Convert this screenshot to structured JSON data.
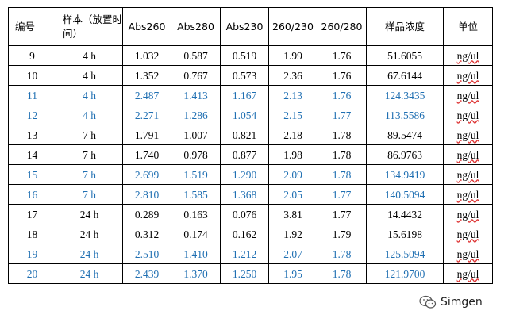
{
  "headers": [
    "编号",
    "样本（放置时间）",
    "Abs260",
    "Abs280",
    "Abs230",
    "260/230",
    "260/280",
    "样品浓度",
    "单位"
  ],
  "rows": [
    {
      "id": "9",
      "time": "4 h",
      "abs260": "1.032",
      "abs280": "0.587",
      "abs230": "0.519",
      "r260_230": "1.99",
      "r260_280": "1.76",
      "conc": "51.6055",
      "unit": "ng/ul",
      "highlight": false
    },
    {
      "id": "10",
      "time": "4 h",
      "abs260": "1.352",
      "abs280": "0.767",
      "abs230": "0.573",
      "r260_230": "2.36",
      "r260_280": "1.76",
      "conc": "67.6144",
      "unit": "ng/ul",
      "highlight": false
    },
    {
      "id": "11",
      "time": "4 h",
      "abs260": "2.487",
      "abs280": "1.413",
      "abs230": "1.167",
      "r260_230": "2.13",
      "r260_280": "1.76",
      "conc": "124.3435",
      "unit": "ng/ul",
      "highlight": true
    },
    {
      "id": "12",
      "time": "4 h",
      "abs260": "2.271",
      "abs280": "1.286",
      "abs230": "1.054",
      "r260_230": "2.15",
      "r260_280": "1.77",
      "conc": "113.5586",
      "unit": "ng/ul",
      "highlight": true
    },
    {
      "id": "13",
      "time": "7 h",
      "abs260": "1.791",
      "abs280": "1.007",
      "abs230": "0.821",
      "r260_230": "2.18",
      "r260_280": "1.78",
      "conc": "89.5474",
      "unit": "ng/ul",
      "highlight": false
    },
    {
      "id": "14",
      "time": "7 h",
      "abs260": "1.740",
      "abs280": "0.978",
      "abs230": "0.877",
      "r260_230": "1.98",
      "r260_280": "1.78",
      "conc": "86.9763",
      "unit": "ng/ul",
      "highlight": false
    },
    {
      "id": "15",
      "time": "7 h",
      "abs260": "2.699",
      "abs280": "1.519",
      "abs230": "1.290",
      "r260_230": "2.09",
      "r260_280": "1.78",
      "conc": "134.9419",
      "unit": "ng/ul",
      "highlight": true
    },
    {
      "id": "16",
      "time": "7 h",
      "abs260": "2.810",
      "abs280": "1.585",
      "abs230": "1.368",
      "r260_230": "2.05",
      "r260_280": "1.77",
      "conc": "140.5094",
      "unit": "ng/ul",
      "highlight": true
    },
    {
      "id": "17",
      "time": "24 h",
      "abs260": "0.289",
      "abs280": "0.163",
      "abs230": "0.076",
      "r260_230": "3.81",
      "r260_280": "1.77",
      "conc": "14.4432",
      "unit": "ng/ul",
      "highlight": false
    },
    {
      "id": "18",
      "time": "24 h",
      "abs260": "0.312",
      "abs280": "0.174",
      "abs230": "0.162",
      "r260_230": "1.92",
      "r260_280": "1.79",
      "conc": "15.6198",
      "unit": "ng/ul",
      "highlight": false
    },
    {
      "id": "19",
      "time": "24 h",
      "abs260": "2.510",
      "abs280": "1.410",
      "abs230": "1.212",
      "r260_230": "2.07",
      "r260_280": "1.78",
      "conc": "125.5094",
      "unit": "ng/ul",
      "highlight": true
    },
    {
      "id": "20",
      "time": "24 h",
      "abs260": "2.439",
      "abs280": "1.370",
      "abs230": "1.250",
      "r260_230": "1.95",
      "r260_280": "1.78",
      "conc": "121.9700",
      "unit": "ng/ul",
      "highlight": true
    }
  ],
  "colors": {
    "text": "#000000",
    "highlight": "#1f6fb2",
    "unit_underline": "#dd3333"
  },
  "watermark": {
    "icon": "wechat-icon",
    "text": "Simgen"
  }
}
